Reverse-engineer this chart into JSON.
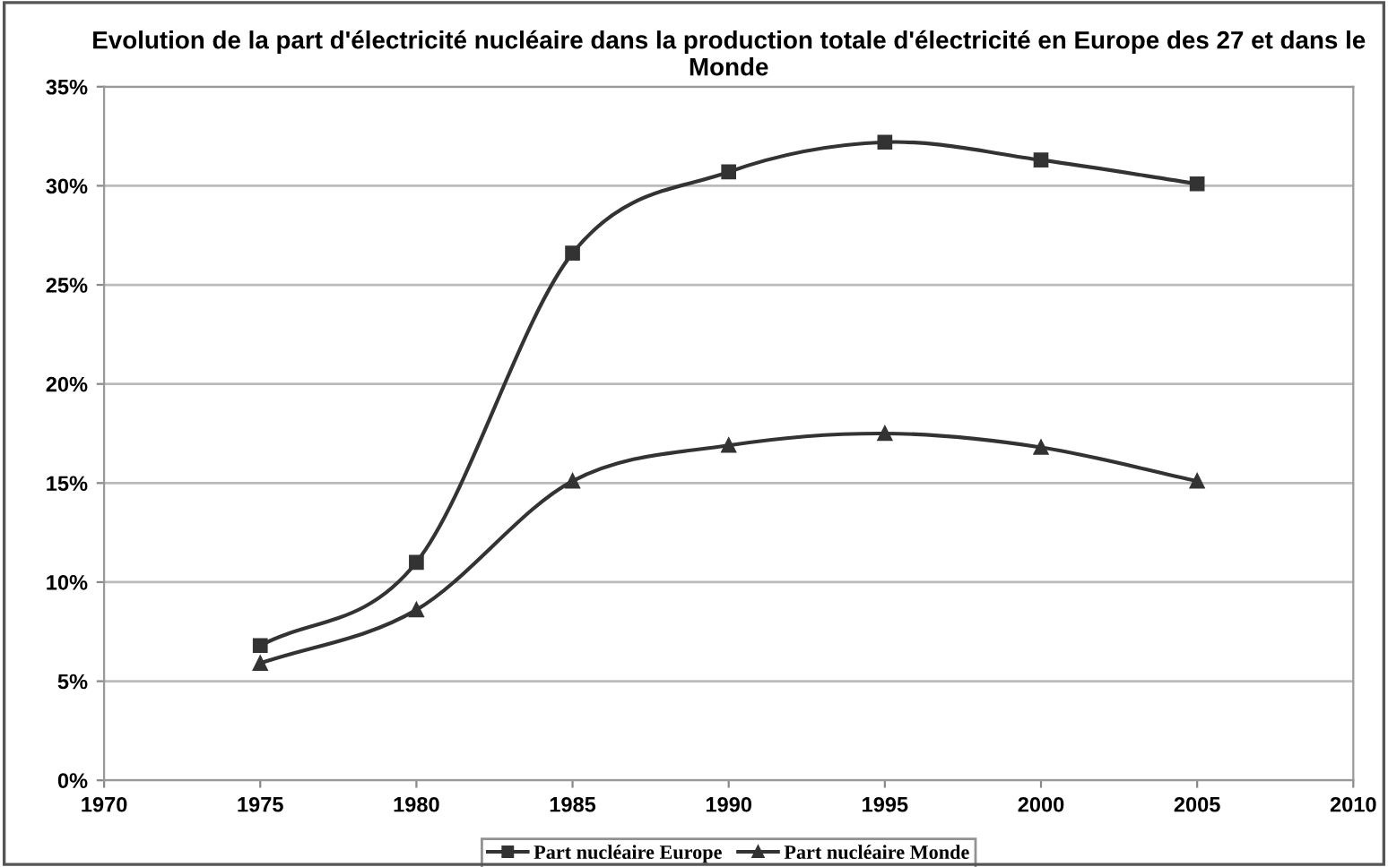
{
  "chart_data": {
    "type": "line",
    "title": "Evolution de la part d'électricité nucléaire dans la production totale d'électricité en Europe des 27 et dans le Monde",
    "x": [
      1975,
      1980,
      1985,
      1990,
      1995,
      2000,
      2005
    ],
    "series": [
      {
        "name": "Part nucléaire Europe",
        "color": "#333333",
        "marker": "square",
        "values": [
          6.8,
          11.0,
          26.6,
          30.7,
          32.2,
          31.3,
          30.1
        ]
      },
      {
        "name": "Part nucléaire Monde",
        "color": "#333333",
        "marker": "triangle",
        "values": [
          5.9,
          8.6,
          15.1,
          16.9,
          17.5,
          16.8,
          15.1
        ]
      }
    ],
    "xlim": [
      1970,
      2010
    ],
    "xticks": [
      1970,
      1975,
      1980,
      1985,
      1990,
      1995,
      2000,
      2005,
      2010
    ],
    "ylim": [
      0,
      35
    ],
    "yticks": [
      {
        "value": 0,
        "label": "0%"
      },
      {
        "value": 5,
        "label": "5%"
      },
      {
        "value": 10,
        "label": "10%"
      },
      {
        "value": 15,
        "label": "15%"
      },
      {
        "value": 20,
        "label": "20%"
      },
      {
        "value": 25,
        "label": "25%"
      },
      {
        "value": 30,
        "label": "30%"
      },
      {
        "value": 35,
        "label": "35%"
      }
    ],
    "grid": "y",
    "legend": "bottom",
    "line_style": "solid"
  }
}
